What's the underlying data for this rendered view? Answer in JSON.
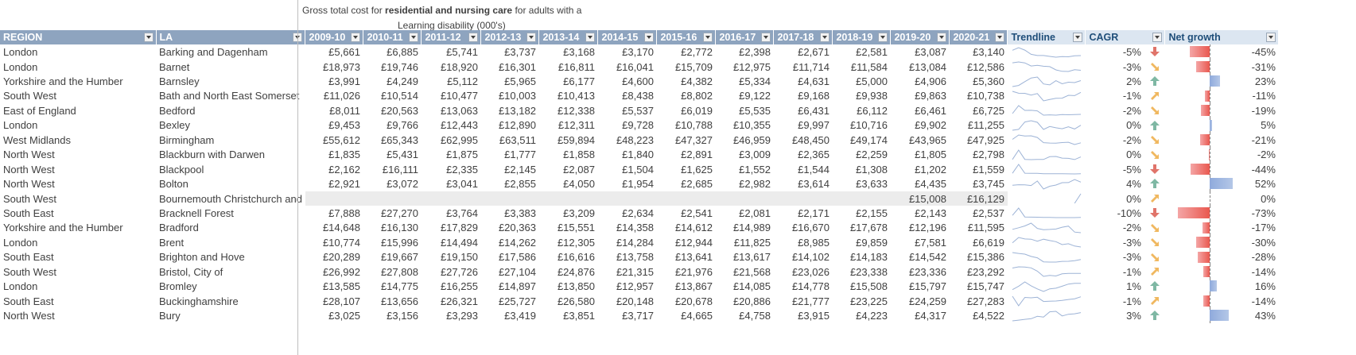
{
  "title": {
    "prefix": "Gross total cost for ",
    "bold": "residential and nursing care",
    "suffix": " for adults with a",
    "line2": "Learning disability (000's)"
  },
  "headers": {
    "region": "REGION",
    "la": "LA",
    "years": [
      "2009-10",
      "2010-11",
      "2011-12",
      "2012-13",
      "2013-14",
      "2014-15",
      "2015-16",
      "2016-17",
      "2017-18",
      "2018-19",
      "2019-20",
      "2020-21"
    ],
    "trendline": "Trendline",
    "cagr": "CAGR",
    "net_growth": "Net growth"
  },
  "rows": [
    {
      "region": "London",
      "la": "Barking and Dagenham",
      "values": [
        "£5,661",
        "£6,885",
        "£5,741",
        "£3,737",
        "£3,168",
        "£3,170",
        "£2,772",
        "£2,398",
        "£2,671",
        "£2,581",
        "£3,087",
        "£3,140"
      ],
      "series": [
        5661,
        6885,
        5741,
        3737,
        3168,
        3170,
        2772,
        2398,
        2671,
        2581,
        3087,
        3140
      ],
      "cagr": "-5%",
      "arrow": "down",
      "net": "-45%",
      "net_value": -45
    },
    {
      "region": "London",
      "la": "Barnet",
      "values": [
        "£18,973",
        "£19,746",
        "£18,920",
        "£16,301",
        "£16,811",
        "£16,041",
        "£15,709",
        "£12,975",
        "£11,714",
        "£11,584",
        "£13,084",
        "£12,586"
      ],
      "series": [
        18973,
        19746,
        18920,
        16301,
        16811,
        16041,
        15709,
        12975,
        11714,
        11584,
        13084,
        12586
      ],
      "cagr": "-3%",
      "arrow": "flat-down",
      "net": "-31%",
      "net_value": -31
    },
    {
      "region": "Yorkshire and the Humber",
      "la": "Barnsley",
      "values": [
        "£3,991",
        "£4,249",
        "£5,112",
        "£5,965",
        "£6,177",
        "£4,600",
        "£4,382",
        "£5,334",
        "£4,631",
        "£5,000",
        "£4,906",
        "£5,360"
      ],
      "series": [
        3991,
        4249,
        5112,
        5965,
        6177,
        4600,
        4382,
        5334,
        4631,
        5000,
        4906,
        5360
      ],
      "cagr": "2%",
      "arrow": "up",
      "net": "23%",
      "net_value": 23
    },
    {
      "region": "South West",
      "la": "Bath and North East Somerset",
      "values": [
        "£11,026",
        "£10,514",
        "£10,477",
        "£10,003",
        "£10,413",
        "£8,438",
        "£8,802",
        "£9,122",
        "£9,168",
        "£9,938",
        "£9,863",
        "£10,738"
      ],
      "series": [
        11026,
        10514,
        10477,
        10003,
        10413,
        8438,
        8802,
        9122,
        9168,
        9938,
        9863,
        10738
      ],
      "cagr": "-1%",
      "arrow": "flat-up",
      "net": "-11%",
      "net_value": -11
    },
    {
      "region": "East of England",
      "la": "Bedford",
      "values": [
        "£8,011",
        "£20,563",
        "£13,063",
        "£13,182",
        "£12,338",
        "£5,537",
        "£6,019",
        "£5,535",
        "£6,431",
        "£6,112",
        "£6,461",
        "£6,725"
      ],
      "series": [
        8011,
        20563,
        13063,
        13182,
        12338,
        5537,
        6019,
        5535,
        6431,
        6112,
        6461,
        6725
      ],
      "cagr": "-2%",
      "arrow": "flat-down",
      "net": "-19%",
      "net_value": -19
    },
    {
      "region": "London",
      "la": "Bexley",
      "values": [
        "£9,453",
        "£9,766",
        "£12,443",
        "£12,890",
        "£12,311",
        "£9,728",
        "£10,788",
        "£10,355",
        "£9,997",
        "£10,716",
        "£9,902",
        "£11,255"
      ],
      "series": [
        9453,
        9766,
        12443,
        12890,
        12311,
        9728,
        10788,
        10355,
        9997,
        10716,
        9902,
        11255
      ],
      "cagr": "0%",
      "arrow": "up",
      "net": "5%",
      "net_value": 5
    },
    {
      "region": "West Midlands",
      "la": "Birmingham",
      "values": [
        "£55,612",
        "£65,343",
        "£62,995",
        "£63,511",
        "£59,894",
        "£48,223",
        "£47,327",
        "£46,959",
        "£48,450",
        "£49,174",
        "£43,965",
        "£47,925"
      ],
      "series": [
        55612,
        65343,
        62995,
        63511,
        59894,
        48223,
        47327,
        46959,
        48450,
        49174,
        43965,
        47925
      ],
      "cagr": "-2%",
      "arrow": "flat-down",
      "net": "-21%",
      "net_value": -21
    },
    {
      "region": "North West",
      "la": "Blackburn with Darwen",
      "values": [
        "£1,835",
        "£5,431",
        "£1,875",
        "£1,777",
        "£1,858",
        "£1,840",
        "£2,891",
        "£3,009",
        "£2,365",
        "£2,259",
        "£1,805",
        "£2,798"
      ],
      "series": [
        1835,
        5431,
        1875,
        1777,
        1858,
        1840,
        2891,
        3009,
        2365,
        2259,
        1805,
        2798
      ],
      "cagr": "0%",
      "arrow": "flat-down",
      "net": "-2%",
      "net_value": -2
    },
    {
      "region": "North West",
      "la": "Blackpool",
      "values": [
        "£2,162",
        "£16,111",
        "£2,335",
        "£2,145",
        "£2,087",
        "£1,504",
        "£1,625",
        "£1,552",
        "£1,544",
        "£1,308",
        "£1,202",
        "£1,559"
      ],
      "series": [
        2162,
        16111,
        2335,
        2145,
        2087,
        1504,
        1625,
        1552,
        1544,
        1308,
        1202,
        1559
      ],
      "cagr": "-5%",
      "arrow": "down",
      "net": "-44%",
      "net_value": -44
    },
    {
      "region": "North West",
      "la": "Bolton",
      "values": [
        "£2,921",
        "£3,072",
        "£3,041",
        "£2,855",
        "£4,050",
        "£1,954",
        "£2,685",
        "£2,982",
        "£3,614",
        "£3,633",
        "£4,435",
        "£3,745"
      ],
      "series": [
        2921,
        3072,
        3041,
        2855,
        4050,
        1954,
        2685,
        2982,
        3614,
        3633,
        4435,
        3745
      ],
      "cagr": "4%",
      "arrow": "up",
      "net": "52%",
      "net_value": 52
    },
    {
      "region": "South West",
      "la": "Bournemouth Christchurch and",
      "values": [
        "",
        "",
        "",
        "",
        "",
        "",
        "",
        "",
        "",
        "",
        "£15,008",
        "£16,129"
      ],
      "series": [
        null,
        null,
        null,
        null,
        null,
        null,
        null,
        null,
        null,
        null,
        15008,
        16129
      ],
      "cagr": "0%",
      "arrow": "flat-up",
      "net": "0%",
      "net_value": 0,
      "grey": true
    },
    {
      "region": "South East",
      "la": "Bracknell Forest",
      "values": [
        "£7,888",
        "£27,270",
        "£3,764",
        "£3,383",
        "£3,209",
        "£2,634",
        "£2,541",
        "£2,081",
        "£2,171",
        "£2,155",
        "£2,143",
        "£2,537"
      ],
      "series": [
        7888,
        27270,
        3764,
        3383,
        3209,
        2634,
        2541,
        2081,
        2171,
        2155,
        2143,
        2537
      ],
      "cagr": "-10%",
      "arrow": "down",
      "net": "-73%",
      "net_value": -73
    },
    {
      "region": "Yorkshire and the Humber",
      "la": "Bradford",
      "values": [
        "£14,648",
        "£16,130",
        "£17,829",
        "£20,363",
        "£15,551",
        "£14,358",
        "£14,612",
        "£14,989",
        "£16,670",
        "£17,678",
        "£12,196",
        "£11,595"
      ],
      "series": [
        14648,
        16130,
        17829,
        20363,
        15551,
        14358,
        14612,
        14989,
        16670,
        17678,
        12196,
        11595
      ],
      "cagr": "-2%",
      "arrow": "flat-down",
      "net": "-17%",
      "net_value": -17
    },
    {
      "region": "London",
      "la": "Brent",
      "values": [
        "£10,774",
        "£15,996",
        "£14,494",
        "£14,262",
        "£12,305",
        "£14,284",
        "£12,944",
        "£11,825",
        "£8,985",
        "£9,859",
        "£7,581",
        "£6,619"
      ],
      "series": [
        10774,
        15996,
        14494,
        14262,
        12305,
        14284,
        12944,
        11825,
        8985,
        9859,
        7581,
        6619
      ],
      "cagr": "-3%",
      "arrow": "flat-down",
      "net": "-30%",
      "net_value": -30
    },
    {
      "region": "South East",
      "la": "Brighton and Hove",
      "values": [
        "£20,289",
        "£19,667",
        "£19,150",
        "£17,586",
        "£16,616",
        "£13,758",
        "£13,641",
        "£13,617",
        "£14,102",
        "£14,183",
        "£14,542",
        "£15,386"
      ],
      "series": [
        20289,
        19667,
        19150,
        17586,
        16616,
        13758,
        13641,
        13617,
        14102,
        14183,
        14542,
        15386
      ],
      "cagr": "-3%",
      "arrow": "flat-down",
      "net": "-28%",
      "net_value": -28
    },
    {
      "region": "South West",
      "la": "Bristol, City of",
      "values": [
        "£26,992",
        "£27,808",
        "£27,726",
        "£27,104",
        "£24,876",
        "£21,315",
        "£21,976",
        "£21,568",
        "£23,026",
        "£23,338",
        "£23,336",
        "£23,292"
      ],
      "series": [
        26992,
        27808,
        27726,
        27104,
        24876,
        21315,
        21976,
        21568,
        23026,
        23338,
        23336,
        23292
      ],
      "cagr": "-1%",
      "arrow": "flat-up",
      "net": "-14%",
      "net_value": -14
    },
    {
      "region": "London",
      "la": "Bromley",
      "values": [
        "£13,585",
        "£14,775",
        "£16,255",
        "£14,897",
        "£13,850",
        "£12,957",
        "£13,867",
        "£14,085",
        "£14,778",
        "£15,508",
        "£15,797",
        "£15,747"
      ],
      "series": [
        13585,
        14775,
        16255,
        14897,
        13850,
        12957,
        13867,
        14085,
        14778,
        15508,
        15797,
        15747
      ],
      "cagr": "1%",
      "arrow": "up",
      "net": "16%",
      "net_value": 16
    },
    {
      "region": "South East",
      "la": "Buckinghamshire",
      "values": [
        "£28,107",
        "£13,656",
        "£26,321",
        "£25,727",
        "£26,580",
        "£20,148",
        "£20,678",
        "£20,886",
        "£21,777",
        "£23,225",
        "£24,259",
        "£27,283"
      ],
      "series": [
        28107,
        13656,
        26321,
        25727,
        26580,
        20148,
        20678,
        20886,
        21777,
        23225,
        24259,
        27283
      ],
      "cagr": "-1%",
      "arrow": "flat-up",
      "net": "-14%",
      "net_value": -14
    },
    {
      "region": "North West",
      "la": "Bury",
      "values": [
        "£3,025",
        "£3,156",
        "£3,293",
        "£3,419",
        "£3,851",
        "£3,717",
        "£4,665",
        "£4,758",
        "£3,915",
        "£4,223",
        "£4,317",
        "£4,522"
      ],
      "series": [
        3025,
        3156,
        3293,
        3419,
        3851,
        3717,
        4665,
        4758,
        3915,
        4223,
        4317,
        4522
      ],
      "cagr": "3%",
      "arrow": "up",
      "net": "43%",
      "net_value": 43
    }
  ],
  "colors": {
    "header_bg": "#8ea4bf",
    "header_alt_bg": "#dce6f1",
    "spark": "#9db3d6",
    "bar_positive": "#b4c7e7",
    "bar_negative": "#f4a6a6",
    "arrow_up": "#7fb8a4",
    "arrow_down": "#e0746a",
    "arrow_flat": "#f0b860"
  }
}
